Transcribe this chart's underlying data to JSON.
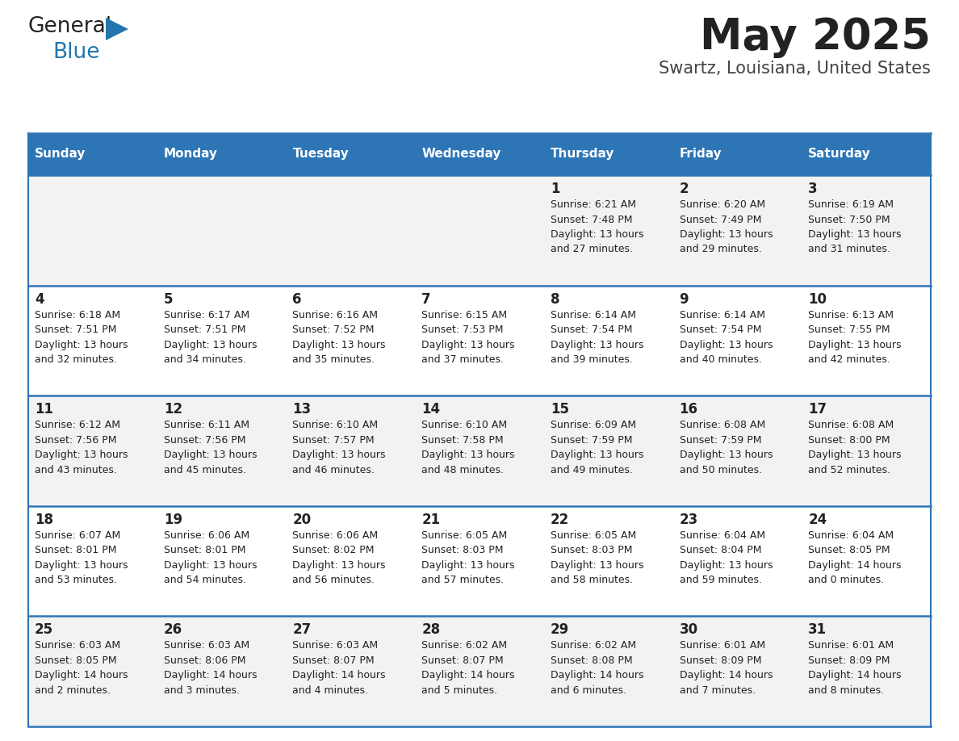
{
  "title": "May 2025",
  "subtitle": "Swartz, Louisiana, United States",
  "days_of_week": [
    "Sunday",
    "Monday",
    "Tuesday",
    "Wednesday",
    "Thursday",
    "Friday",
    "Saturday"
  ],
  "header_bg": "#2E75B6",
  "header_text": "#FFFFFF",
  "row_bg_even": "#F2F2F2",
  "row_bg_odd": "#FFFFFF",
  "cell_text": "#222222",
  "border_color": "#2E75B6",
  "logo_text_color": "#222222",
  "logo_blue_color": "#2176AE",
  "title_color": "#222222",
  "subtitle_color": "#444444",
  "calendar_data": [
    [
      null,
      null,
      null,
      null,
      {
        "day": 1,
        "sunrise": "6:21 AM",
        "sunset": "7:48 PM",
        "daylight": "13 hours and 27 minutes."
      },
      {
        "day": 2,
        "sunrise": "6:20 AM",
        "sunset": "7:49 PM",
        "daylight": "13 hours and 29 minutes."
      },
      {
        "day": 3,
        "sunrise": "6:19 AM",
        "sunset": "7:50 PM",
        "daylight": "13 hours and 31 minutes."
      }
    ],
    [
      {
        "day": 4,
        "sunrise": "6:18 AM",
        "sunset": "7:51 PM",
        "daylight": "13 hours and 32 minutes."
      },
      {
        "day": 5,
        "sunrise": "6:17 AM",
        "sunset": "7:51 PM",
        "daylight": "13 hours and 34 minutes."
      },
      {
        "day": 6,
        "sunrise": "6:16 AM",
        "sunset": "7:52 PM",
        "daylight": "13 hours and 35 minutes."
      },
      {
        "day": 7,
        "sunrise": "6:15 AM",
        "sunset": "7:53 PM",
        "daylight": "13 hours and 37 minutes."
      },
      {
        "day": 8,
        "sunrise": "6:14 AM",
        "sunset": "7:54 PM",
        "daylight": "13 hours and 39 minutes."
      },
      {
        "day": 9,
        "sunrise": "6:14 AM",
        "sunset": "7:54 PM",
        "daylight": "13 hours and 40 minutes."
      },
      {
        "day": 10,
        "sunrise": "6:13 AM",
        "sunset": "7:55 PM",
        "daylight": "13 hours and 42 minutes."
      }
    ],
    [
      {
        "day": 11,
        "sunrise": "6:12 AM",
        "sunset": "7:56 PM",
        "daylight": "13 hours and 43 minutes."
      },
      {
        "day": 12,
        "sunrise": "6:11 AM",
        "sunset": "7:56 PM",
        "daylight": "13 hours and 45 minutes."
      },
      {
        "day": 13,
        "sunrise": "6:10 AM",
        "sunset": "7:57 PM",
        "daylight": "13 hours and 46 minutes."
      },
      {
        "day": 14,
        "sunrise": "6:10 AM",
        "sunset": "7:58 PM",
        "daylight": "13 hours and 48 minutes."
      },
      {
        "day": 15,
        "sunrise": "6:09 AM",
        "sunset": "7:59 PM",
        "daylight": "13 hours and 49 minutes."
      },
      {
        "day": 16,
        "sunrise": "6:08 AM",
        "sunset": "7:59 PM",
        "daylight": "13 hours and 50 minutes."
      },
      {
        "day": 17,
        "sunrise": "6:08 AM",
        "sunset": "8:00 PM",
        "daylight": "13 hours and 52 minutes."
      }
    ],
    [
      {
        "day": 18,
        "sunrise": "6:07 AM",
        "sunset": "8:01 PM",
        "daylight": "13 hours and 53 minutes."
      },
      {
        "day": 19,
        "sunrise": "6:06 AM",
        "sunset": "8:01 PM",
        "daylight": "13 hours and 54 minutes."
      },
      {
        "day": 20,
        "sunrise": "6:06 AM",
        "sunset": "8:02 PM",
        "daylight": "13 hours and 56 minutes."
      },
      {
        "day": 21,
        "sunrise": "6:05 AM",
        "sunset": "8:03 PM",
        "daylight": "13 hours and 57 minutes."
      },
      {
        "day": 22,
        "sunrise": "6:05 AM",
        "sunset": "8:03 PM",
        "daylight": "13 hours and 58 minutes."
      },
      {
        "day": 23,
        "sunrise": "6:04 AM",
        "sunset": "8:04 PM",
        "daylight": "13 hours and 59 minutes."
      },
      {
        "day": 24,
        "sunrise": "6:04 AM",
        "sunset": "8:05 PM",
        "daylight": "14 hours and 0 minutes."
      }
    ],
    [
      {
        "day": 25,
        "sunrise": "6:03 AM",
        "sunset": "8:05 PM",
        "daylight": "14 hours and 2 minutes."
      },
      {
        "day": 26,
        "sunrise": "6:03 AM",
        "sunset": "8:06 PM",
        "daylight": "14 hours and 3 minutes."
      },
      {
        "day": 27,
        "sunrise": "6:03 AM",
        "sunset": "8:07 PM",
        "daylight": "14 hours and 4 minutes."
      },
      {
        "day": 28,
        "sunrise": "6:02 AM",
        "sunset": "8:07 PM",
        "daylight": "14 hours and 5 minutes."
      },
      {
        "day": 29,
        "sunrise": "6:02 AM",
        "sunset": "8:08 PM",
        "daylight": "14 hours and 6 minutes."
      },
      {
        "day": 30,
        "sunrise": "6:01 AM",
        "sunset": "8:09 PM",
        "daylight": "14 hours and 7 minutes."
      },
      {
        "day": 31,
        "sunrise": "6:01 AM",
        "sunset": "8:09 PM",
        "daylight": "14 hours and 8 minutes."
      }
    ]
  ]
}
